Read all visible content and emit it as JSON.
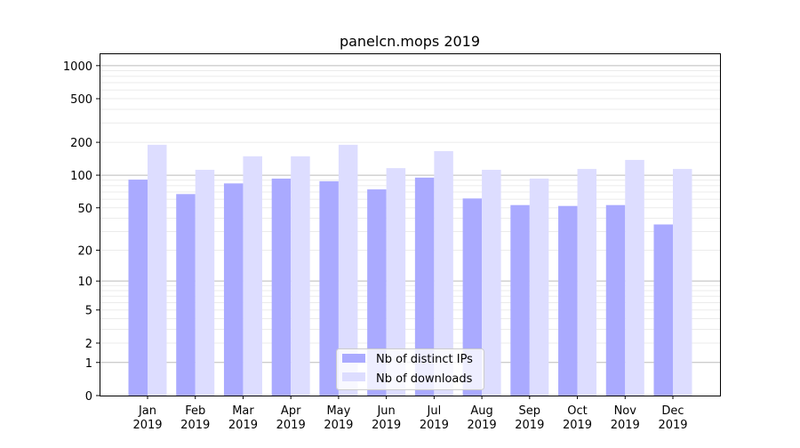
{
  "chart_data": {
    "type": "bar",
    "title": "panelcn.mops 2019",
    "xlabel": "",
    "ylabel": "",
    "y_scale": "log(1+y)",
    "ylim": [
      0,
      1300
    ],
    "y_ticks": [
      0,
      1,
      2,
      5,
      10,
      20,
      50,
      100,
      200,
      500,
      1000
    ],
    "grid": "horizontal major and minor",
    "legend_position": "lower-center",
    "categories": [
      "Jan\n2019",
      "Feb\n2019",
      "Mar\n2019",
      "Apr\n2019",
      "May\n2019",
      "Jun\n2019",
      "Jul\n2019",
      "Aug\n2019",
      "Sep\n2019",
      "Oct\n2019",
      "Nov\n2019",
      "Dec\n2019"
    ],
    "series": [
      {
        "name": "Nb of distinct IPs",
        "color": "#aaaaff",
        "values": [
          91,
          67,
          84,
          93,
          88,
          74,
          95,
          61,
          53,
          52,
          53,
          35
        ]
      },
      {
        "name": "Nb of downloads",
        "color": "#ddddff",
        "values": [
          190,
          112,
          149,
          149,
          190,
          116,
          166,
          112,
          93,
          114,
          138,
          114
        ]
      }
    ]
  }
}
